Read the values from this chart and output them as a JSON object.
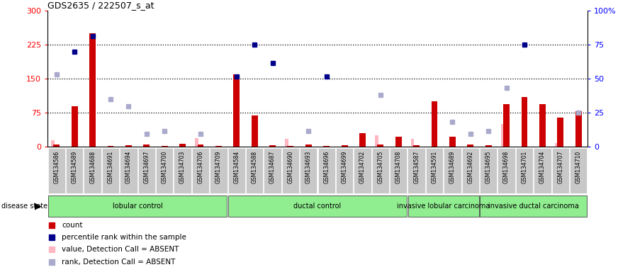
{
  "title": "GDS2635 / 222507_s_at",
  "samples": [
    "GSM134586",
    "GSM134589",
    "GSM134688",
    "GSM134691",
    "GSM134694",
    "GSM134697",
    "GSM134700",
    "GSM134703",
    "GSM134706",
    "GSM134709",
    "GSM134584",
    "GSM134588",
    "GSM134687",
    "GSM134690",
    "GSM134693",
    "GSM134696",
    "GSM134699",
    "GSM134702",
    "GSM134705",
    "GSM134708",
    "GSM134587",
    "GSM134591",
    "GSM134689",
    "GSM134692",
    "GSM134695",
    "GSM134698",
    "GSM134701",
    "GSM134704",
    "GSM134707",
    "GSM134710"
  ],
  "groups": [
    {
      "name": "lobular control",
      "start": 0,
      "end": 10
    },
    {
      "name": "ductal control",
      "start": 10,
      "end": 20
    },
    {
      "name": "invasive lobular carcinoma",
      "start": 20,
      "end": 24
    },
    {
      "name": "invasive ductal carcinoma",
      "start": 24,
      "end": 30
    }
  ],
  "count_values": [
    5,
    90,
    250,
    2,
    3,
    5,
    2,
    7,
    5,
    2,
    160,
    70,
    3,
    2,
    5,
    2,
    3,
    30,
    5,
    22,
    4,
    100,
    22,
    5,
    4,
    95,
    110,
    95,
    65,
    78
  ],
  "absent_value": [
    15,
    null,
    null,
    null,
    null,
    null,
    null,
    null,
    20,
    null,
    null,
    null,
    null,
    18,
    null,
    null,
    null,
    null,
    25,
    null,
    18,
    null,
    null,
    null,
    null,
    50,
    null,
    null,
    8,
    null
  ],
  "blue_rank_present": [
    null,
    210,
    245,
    null,
    null,
    null,
    null,
    null,
    null,
    null,
    155,
    225,
    185,
    null,
    null,
    155,
    null,
    null,
    null,
    null,
    null,
    null,
    null,
    null,
    null,
    null,
    225,
    null,
    null,
    null
  ],
  "light_blue_rank_absent": [
    160,
    null,
    null,
    105,
    90,
    28,
    35,
    null,
    28,
    null,
    null,
    null,
    null,
    null,
    35,
    null,
    null,
    null,
    115,
    null,
    null,
    null,
    55,
    28,
    35,
    130,
    null,
    null,
    null,
    75
  ],
  "left_ylim": [
    0,
    300
  ],
  "right_ylim": [
    0,
    100
  ],
  "left_yticks": [
    0,
    75,
    150,
    225,
    300
  ],
  "right_yticks": [
    0,
    25,
    50,
    75,
    100
  ],
  "right_yticklabels": [
    "0",
    "25",
    "50",
    "75",
    "100%"
  ],
  "dotted_lines": [
    75,
    150,
    225
  ],
  "bar_color": "#CC0000",
  "absent_bar_color": "#FFB6C1",
  "blue_color": "#00008B",
  "light_blue_color": "#AAAACC",
  "label_bg": "#C8C8C8",
  "group_color": "#90EE90",
  "group_border": "#444444",
  "legend_items": [
    {
      "color": "#CC0000",
      "label": "count"
    },
    {
      "color": "#00008B",
      "label": "percentile rank within the sample"
    },
    {
      "color": "#FFB6C1",
      "label": "value, Detection Call = ABSENT"
    },
    {
      "color": "#AAAACC",
      "label": "rank, Detection Call = ABSENT"
    }
  ]
}
